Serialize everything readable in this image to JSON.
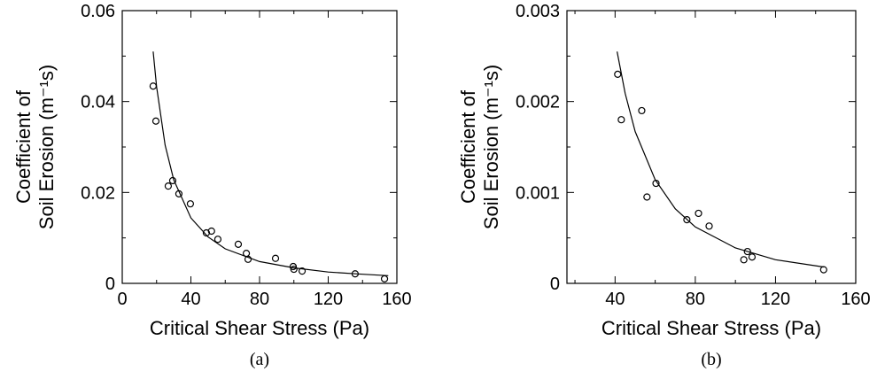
{
  "chart_data": [
    {
      "type": "scatter",
      "caption": "(a)",
      "xlabel": "Critical Shear Stress (Pa)",
      "ylabel": [
        "Coefficient of",
        "Soil Erosion (m⁻¹s)"
      ],
      "xlim": [
        0,
        160
      ],
      "xticks": [
        0,
        40,
        80,
        120,
        160
      ],
      "xminorticks": [
        20,
        60,
        100,
        140
      ],
      "ylim": [
        0,
        0.06
      ],
      "yticks": [
        0,
        0.02,
        0.04,
        0.06
      ],
      "yminorticks": [
        0.01,
        0.03,
        0.05
      ],
      "points": {
        "x": [
          18,
          19.6,
          26.8,
          29.4,
          33,
          39.7,
          49,
          52,
          55.7,
          67.6,
          72.3,
          73.3,
          89.3,
          99.6,
          100,
          104.8,
          135.7,
          152.8
        ],
        "y": [
          0.0434,
          0.0357,
          0.0214,
          0.0226,
          0.0197,
          0.0175,
          0.0111,
          0.0115,
          0.0097,
          0.0086,
          0.0066,
          0.0053,
          0.0055,
          0.0037,
          0.0031,
          0.0027,
          0.0021,
          0.001
        ]
      },
      "fit": {
        "x": [
          18,
          20,
          25,
          30,
          40,
          50,
          60,
          80,
          100,
          120,
          140,
          155
        ],
        "y": [
          0.051,
          0.0432,
          0.0304,
          0.0228,
          0.0144,
          0.0102,
          0.0076,
          0.0048,
          0.0034,
          0.0025,
          0.002,
          0.0017
        ]
      }
    },
    {
      "type": "scatter",
      "caption": "(b)",
      "xlabel": "Critical Shear Stress (Pa)",
      "ylabel": [
        "Coefficient of",
        "Soil Erosion (m⁻¹s)"
      ],
      "xlim": [
        16,
        160
      ],
      "xticks": [
        40,
        80,
        120,
        160
      ],
      "xminorticks": [
        20,
        60,
        100,
        140
      ],
      "ylim": [
        0,
        0.003
      ],
      "yticks": [
        0,
        0.001,
        0.002,
        0.003
      ],
      "yminorticks": [
        0.0005,
        0.0015,
        0.0025
      ],
      "points": {
        "x": [
          41.3,
          43.1,
          53.3,
          60.4,
          55.9,
          75.8,
          81.6,
          86.9,
          104.2,
          106,
          108.3,
          144
        ],
        "y": [
          0.0023,
          0.0018,
          0.0019,
          0.0011,
          0.00095,
          0.0007,
          0.00077,
          0.00063,
          0.00026,
          0.00035,
          0.00029,
          0.00015
        ]
      },
      "fit": {
        "x": [
          41,
          45,
          50,
          60,
          70,
          80,
          100,
          120,
          144
        ],
        "y": [
          0.00255,
          0.00209,
          0.00167,
          0.00114,
          0.00082,
          0.00062,
          0.00039,
          0.00026,
          0.00018
        ]
      }
    }
  ]
}
